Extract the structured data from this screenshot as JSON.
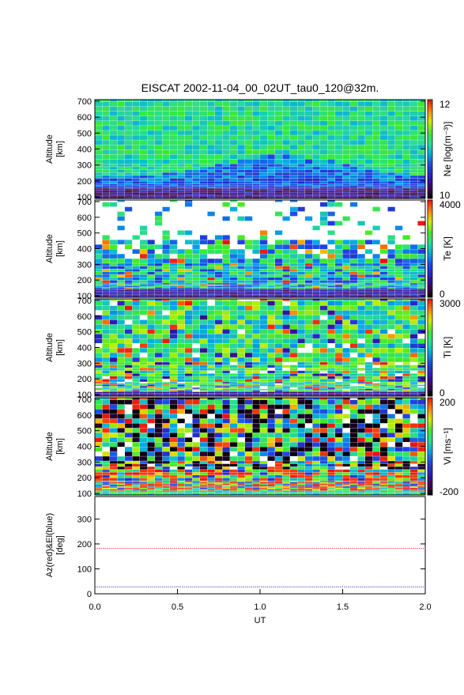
{
  "chart_data": {
    "type": "heatmap",
    "title": "EISCAT 2002-11-04_00_02UT_tau0_120@32m.",
    "xlabel": "UT",
    "x_ticks": [
      "0.0",
      "0.5",
      "1.0",
      "1.5",
      "2.0"
    ],
    "xlim": [
      0.0,
      2.0
    ],
    "panels": [
      {
        "id": "ne",
        "ylabel_lines": [
          "Altitude",
          "[km]"
        ],
        "ylim": [
          90,
          710
        ],
        "yticks": [
          100,
          200,
          300,
          400,
          500,
          600,
          700
        ],
        "colorbar_label": "Ne [log(m⁻³)]",
        "colorbar_range": [
          "10",
          "12"
        ],
        "description": "Electron density, log scale; high (green) values above 300 km, low (purple/black) below 200 km"
      },
      {
        "id": "te",
        "ylabel_lines": [
          "Altitude",
          "[km]"
        ],
        "ylim": [
          90,
          710
        ],
        "yticks": [
          100,
          200,
          300,
          400,
          500,
          600,
          700
        ],
        "colorbar_label": "Te [K]",
        "colorbar_range": [
          "0",
          "4000"
        ],
        "description": "Electron temperature; mostly 1500-3000 K, sparse data above 450 km"
      },
      {
        "id": "ti",
        "ylabel_lines": [
          "Altitude",
          "[km]"
        ],
        "ylim": [
          90,
          710
        ],
        "yticks": [
          100,
          200,
          300,
          400,
          500,
          600,
          700
        ],
        "colorbar_label": "Ti [K]",
        "colorbar_range": [
          "0",
          "3000"
        ],
        "description": "Ion temperature; noisy, mostly 1000-2000 K"
      },
      {
        "id": "vi",
        "ylabel_lines": [
          "Altitude",
          "[km]"
        ],
        "ylim": [
          90,
          710
        ],
        "yticks": [
          100,
          200,
          300,
          400,
          500,
          600,
          700
        ],
        "colorbar_label": "Vi [ms⁻¹]",
        "colorbar_range": [
          "-200",
          "200"
        ],
        "description": "Ion line-of-sight velocity; saturated red/black speckle, red near 150-250 km"
      }
    ],
    "bottom_panel": {
      "type": "line",
      "ylabel_lines": [
        "Az(red)&El(blue)",
        "[deg]"
      ],
      "ylim": [
        0,
        390
      ],
      "yticks": [
        0,
        100,
        200,
        300
      ],
      "series": [
        {
          "name": "Az(red)",
          "color": "#e8553b",
          "x": [
            0.0,
            2.0
          ],
          "y": [
            182,
            182
          ]
        },
        {
          "name": "El(blue)",
          "color": "#5a5ad8",
          "x": [
            0.0,
            2.0
          ],
          "y": [
            28,
            28
          ]
        }
      ]
    }
  }
}
